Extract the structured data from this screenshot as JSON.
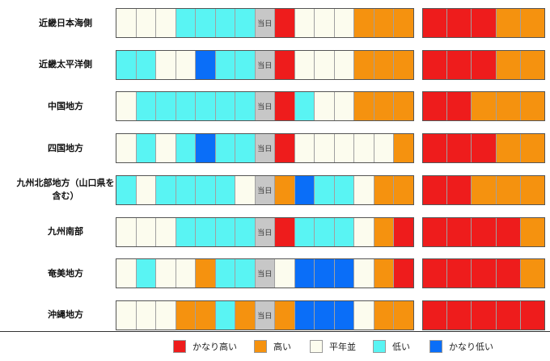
{
  "colors": {
    "かなり高い": "#ee1c1c",
    "高い": "#f5920f",
    "平年並": "#fcfcee",
    "低い": "#59f4f3",
    "かなり低い": "#0a6ef8",
    "当日": "#c7c7c7"
  },
  "today_label": "当日",
  "chart_data": {
    "type": "table",
    "categories": [
      "かなり高い",
      "高い",
      "平年並",
      "低い",
      "かなり低い"
    ],
    "legend": [
      "かなり高い",
      "高い",
      "平年並",
      "低い",
      "かなり低い"
    ],
    "rows": [
      {
        "region": "近畿日本海側",
        "daily": [
          "平年並",
          "平年並",
          "平年並",
          "低い",
          "低い",
          "低い",
          "低い",
          "当日",
          "かなり高い",
          "平年並",
          "平年並",
          "平年並",
          "高い",
          "高い",
          "高い"
        ],
        "weekly": [
          "かなり高い",
          "かなり高い",
          "かなり高い",
          "高い",
          "高い"
        ]
      },
      {
        "region": "近畿太平洋側",
        "daily": [
          "低い",
          "低い",
          "平年並",
          "平年並",
          "かなり低い",
          "低い",
          "低い",
          "当日",
          "かなり高い",
          "平年並",
          "平年並",
          "平年並",
          "高い",
          "高い",
          "高い"
        ],
        "weekly": [
          "かなり高い",
          "かなり高い",
          "かなり高い",
          "高い",
          "高い"
        ]
      },
      {
        "region": "中国地方",
        "daily": [
          "平年並",
          "低い",
          "低い",
          "低い",
          "低い",
          "低い",
          "低い",
          "当日",
          "かなり高い",
          "低い",
          "平年並",
          "平年並",
          "高い",
          "高い",
          "高い"
        ],
        "weekly": [
          "かなり高い",
          "かなり高い",
          "高い",
          "高い",
          "高い"
        ]
      },
      {
        "region": "四国地方",
        "daily": [
          "平年並",
          "低い",
          "平年並",
          "低い",
          "かなり低い",
          "低い",
          "低い",
          "当日",
          "かなり高い",
          "平年並",
          "平年並",
          "平年並",
          "平年並",
          "平年並",
          "高い"
        ],
        "weekly": [
          "かなり高い",
          "かなり高い",
          "かなり高い",
          "高い",
          "高い"
        ]
      },
      {
        "region": "九州北部地方（山口県を含む）",
        "daily": [
          "低い",
          "平年並",
          "低い",
          "低い",
          "低い",
          "低い",
          "平年並",
          "当日",
          "高い",
          "かなり低い",
          "低い",
          "低い",
          "平年並",
          "高い",
          "高い"
        ],
        "weekly": [
          "かなり高い",
          "かなり高い",
          "高い",
          "高い",
          "高い"
        ]
      },
      {
        "region": "九州南部",
        "daily": [
          "平年並",
          "平年並",
          "平年並",
          "低い",
          "低い",
          "低い",
          "低い",
          "当日",
          "かなり高い",
          "低い",
          "低い",
          "低い",
          "平年並",
          "高い",
          "かなり高い"
        ],
        "weekly": [
          "かなり高い",
          "かなり高い",
          "かなり高い",
          "かなり高い",
          "高い"
        ]
      },
      {
        "region": "奄美地方",
        "daily": [
          "平年並",
          "低い",
          "平年並",
          "平年並",
          "高い",
          "低い",
          "低い",
          "当日",
          "平年並",
          "かなり低い",
          "かなり低い",
          "かなり低い",
          "平年並",
          "高い",
          "かなり高い"
        ],
        "weekly": [
          "かなり高い",
          "かなり高い",
          "かなり高い",
          "かなり高い",
          "高い"
        ]
      },
      {
        "region": "沖縄地方",
        "daily": [
          "平年並",
          "平年並",
          "平年並",
          "高い",
          "高い",
          "低い",
          "高い",
          "当日",
          "高い",
          "かなり低い",
          "かなり低い",
          "かなり低い",
          "平年並",
          "高い",
          "高い"
        ],
        "weekly": [
          "かなり高い",
          "かなり高い",
          "かなり高い",
          "かなり高い",
          "かなり高い"
        ]
      }
    ]
  }
}
